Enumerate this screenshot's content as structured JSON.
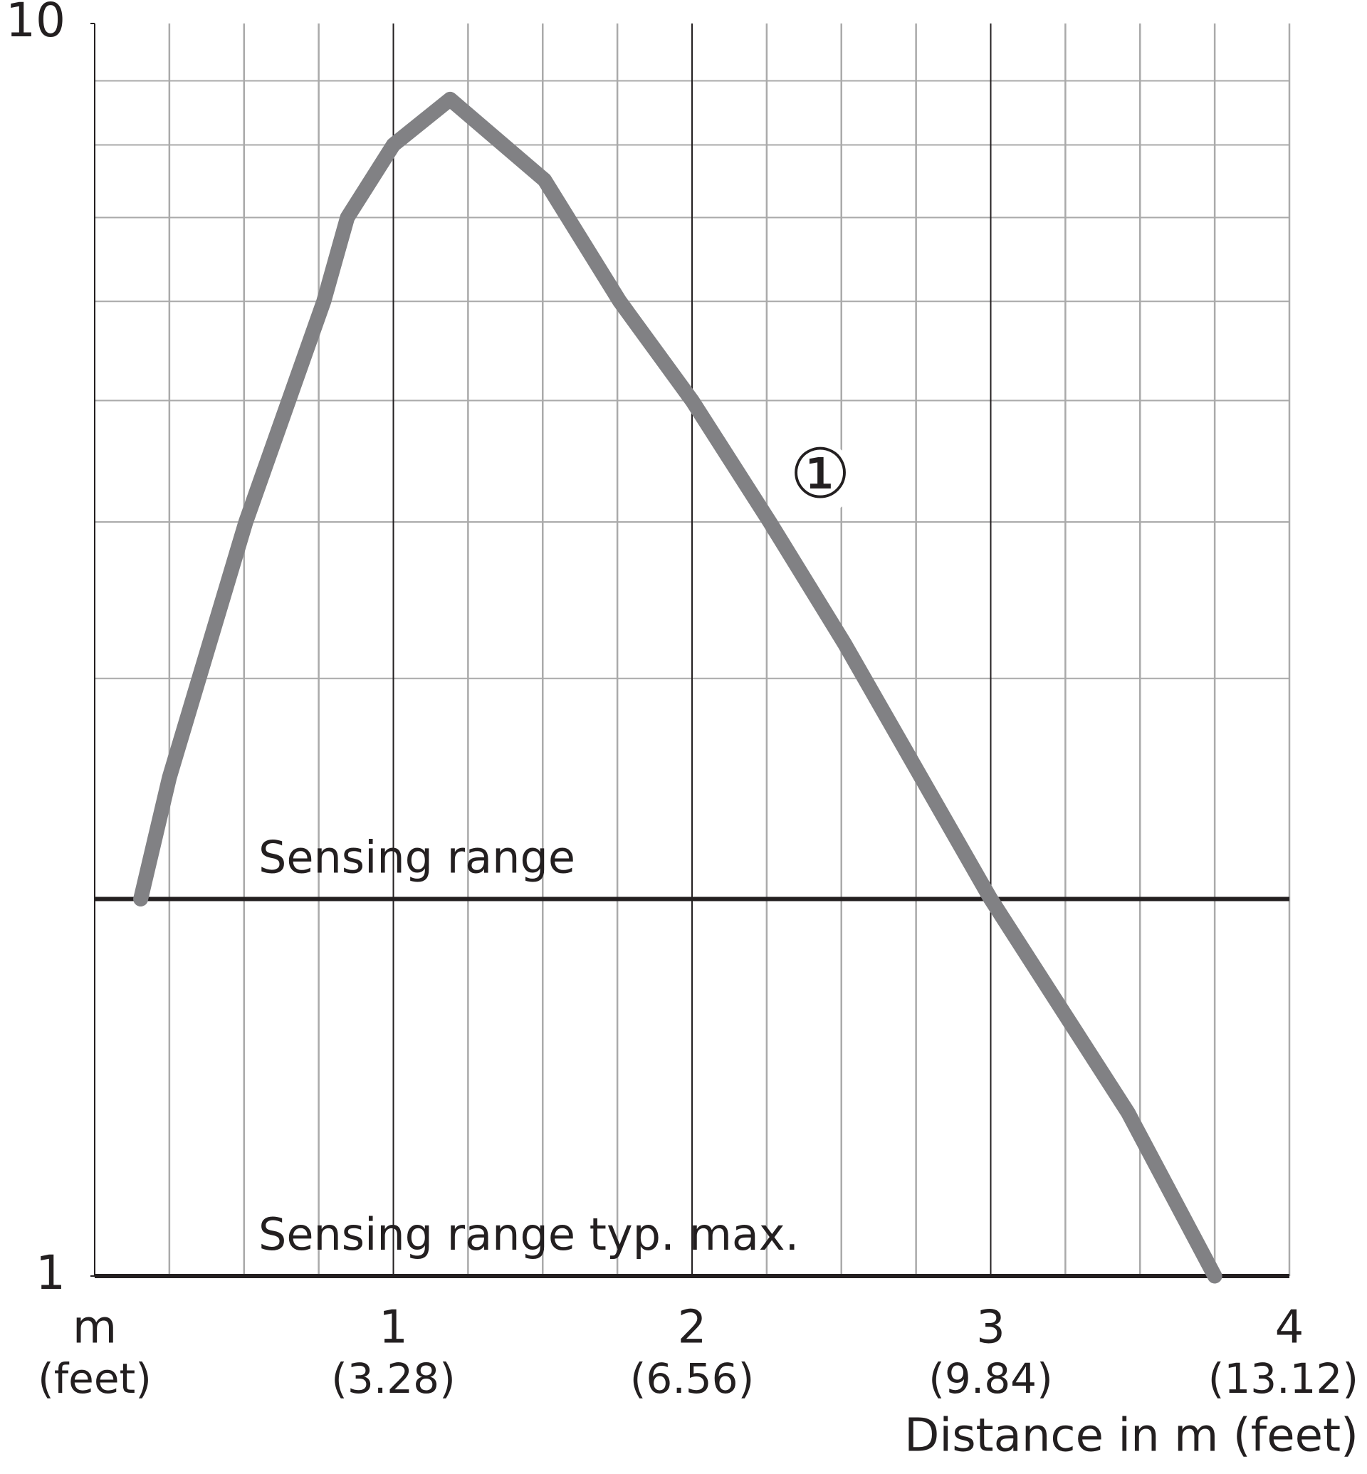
{
  "chart_data": {
    "type": "line",
    "x_label": "Distance in m (feet)",
    "xlim": [
      0,
      4
    ],
    "xticks": [
      {
        "value": 0,
        "label": "m"
      },
      1,
      2,
      3,
      4
    ],
    "xtick_sublabels": [
      "(feet)",
      "(3.28)",
      "(6.56)",
      "(9.84)",
      "(13.12)"
    ],
    "x_minor_ticks": [
      0.25,
      0.5,
      0.75,
      1.25,
      1.5,
      1.75,
      2.25,
      2.5,
      2.75,
      3.25,
      3.5,
      3.75
    ],
    "ylim": [
      1,
      10
    ],
    "log_y": true,
    "yticks": [
      1,
      10
    ],
    "y_minor_ticks": [
      2,
      3,
      4,
      5,
      6,
      7,
      8,
      9
    ],
    "grid": true,
    "hlines": [
      {
        "value": 2,
        "label": "Sensing range"
      },
      {
        "value": 1,
        "label": "Sensing range typ. max."
      }
    ],
    "series": [
      {
        "name": "①",
        "color": "#818184",
        "x": [
          0.154,
          0.25,
          0.506,
          0.767,
          0.846,
          1.0,
          1.19,
          1.506,
          1.758,
          2.0,
          2.26,
          2.51,
          3.0,
          3.46,
          3.75
        ],
        "values": [
          2,
          2.5,
          4,
          6,
          7,
          8,
          8.7,
          7.5,
          6,
          5,
          4,
          3.2,
          2,
          1.35,
          1
        ]
      }
    ]
  }
}
